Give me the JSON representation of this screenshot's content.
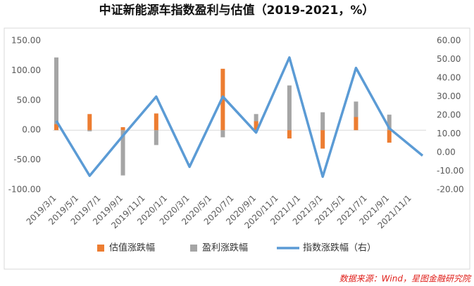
{
  "chart_data": {
    "type": "bar_line",
    "title": "中证新能源车指数盈利与估值（2019-2021，%）",
    "source": "数据来源：Wind，星图金融研究院",
    "xticks": [
      "2019/3/1",
      "2019/5/1",
      "2019/7/1",
      "2019/9/1",
      "2019/11/1",
      "2020/1/1",
      "2020/3/1",
      "2020/5/1",
      "2020/7/1",
      "2020/9/1",
      "2020/11/1",
      "2021/1/1",
      "2021/3/1",
      "2021/5/1",
      "2021/7/1",
      "2021/9/1",
      "2021/11/1"
    ],
    "x": [
      "2019/3/1",
      "2019/6/1",
      "2019/9/1",
      "2019/12/1",
      "2020/3/1",
      "2020/6/1",
      "2020/9/1",
      "2020/12/1",
      "2021/3/1",
      "2021/6/1",
      "2021/9/1",
      "2021/12/1"
    ],
    "series": [
      {
        "name": "估值涨跌幅",
        "color": "#ed7d31",
        "values": [
          10,
          27,
          5,
          28,
          0,
          103,
          15,
          -14,
          -31,
          22,
          -21,
          0
        ]
      },
      {
        "name": "盈利涨跌幅",
        "color": "#a5a5a5",
        "values": [
          122,
          -2,
          -76,
          -25,
          0,
          -12,
          27,
          75,
          30,
          48,
          26,
          0
        ]
      },
      {
        "name": "指数涨跌幅（右）",
        "color": "#5b9bd5",
        "axis": "y2",
        "values": [
          17,
          -12.5,
          9,
          30,
          -7.7,
          30,
          10.7,
          51,
          -13,
          45.4,
          13,
          -1.7
        ]
      }
    ],
    "ylim": [
      -100,
      150
    ],
    "yticks": [
      {
        "value": -100,
        "label": "-100.00"
      },
      {
        "value": -50,
        "label": "-50.00"
      },
      {
        "value": 0,
        "label": "0.00"
      },
      {
        "value": 50,
        "label": "50.00"
      },
      {
        "value": 100,
        "label": "100.00"
      },
      {
        "value": 150,
        "label": "150.00"
      }
    ],
    "y2lim": [
      -20,
      60
    ],
    "y2ticks": [
      {
        "value": -20,
        "label": "-20.00"
      },
      {
        "value": -10,
        "label": "-10.00"
      },
      {
        "value": 0,
        "label": "0.00"
      },
      {
        "value": 10,
        "label": "10.00"
      },
      {
        "value": 20,
        "label": "20.00"
      },
      {
        "value": 30,
        "label": "30.00"
      },
      {
        "value": 40,
        "label": "40.00"
      },
      {
        "value": 50,
        "label": "50.00"
      },
      {
        "value": 60,
        "label": "60.00"
      }
    ],
    "legend": "bottom"
  }
}
